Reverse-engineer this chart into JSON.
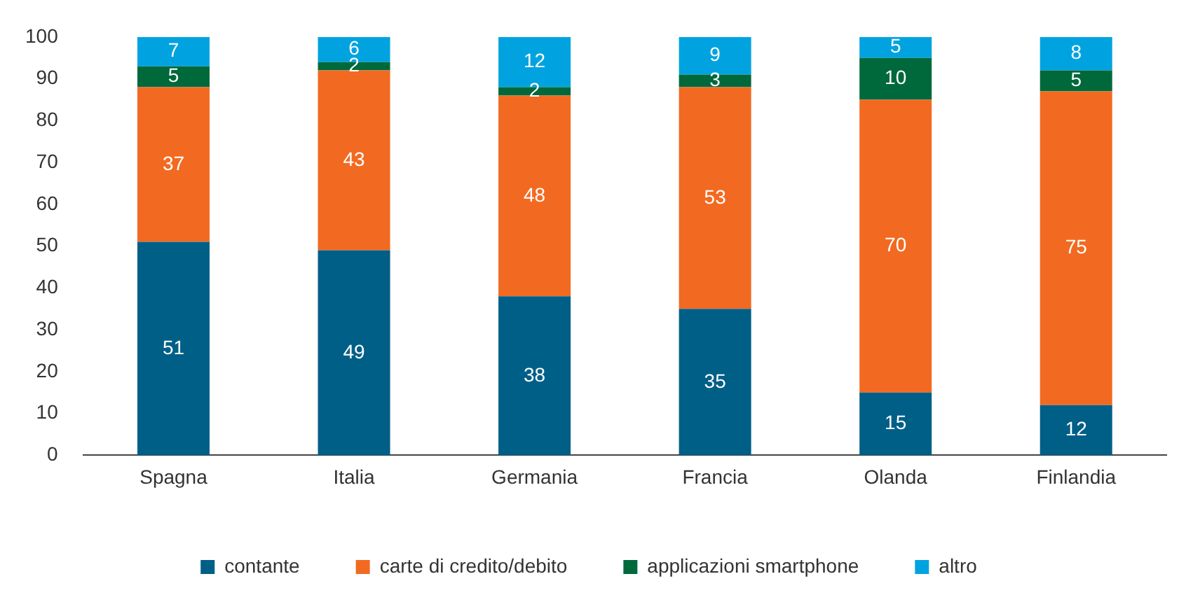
{
  "chart_data": {
    "type": "bar",
    "stacked": true,
    "categories": [
      "Spagna",
      "Italia",
      "Germania",
      "Francia",
      "Olanda",
      "Finlandia"
    ],
    "series": [
      {
        "name": "contante",
        "color": "#005f87",
        "values": [
          51,
          49,
          38,
          35,
          15,
          12
        ]
      },
      {
        "name": "carte di credito/debito",
        "color": "#f26a21",
        "values": [
          37,
          43,
          48,
          53,
          70,
          75
        ]
      },
      {
        "name": "applicazioni smartphone",
        "color": "#00693c",
        "values": [
          5,
          2,
          2,
          3,
          10,
          5
        ]
      },
      {
        "name": "altro",
        "color": "#00a3e0",
        "values": [
          7,
          6,
          12,
          9,
          5,
          8
        ]
      }
    ],
    "ylim": [
      0,
      100
    ],
    "yticks": [
      0,
      10,
      20,
      30,
      40,
      50,
      60,
      70,
      80,
      90,
      100
    ],
    "grid": false,
    "legend": "bottom",
    "data_labels": true
  }
}
